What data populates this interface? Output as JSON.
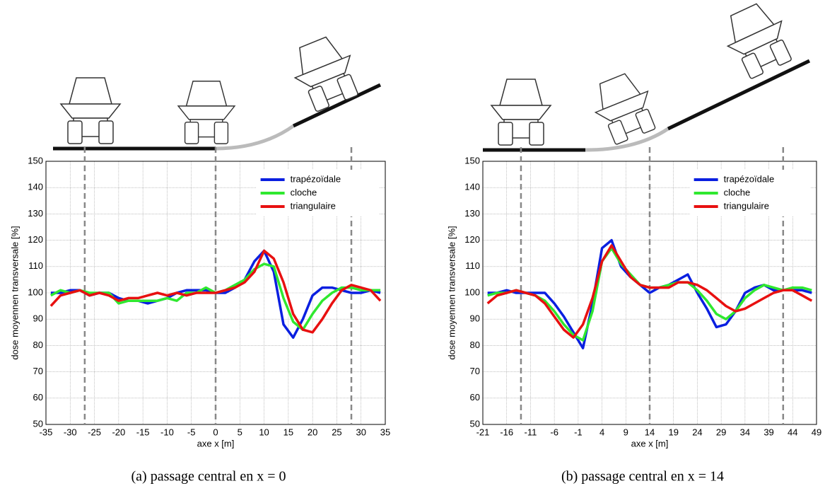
{
  "chart_data": [
    {
      "type": "line",
      "caption": "(a) passage central en x = 0",
      "xlabel": "axe x [m]",
      "ylabel": "dose moyennen transversale [%]",
      "xlim": [
        -35,
        35
      ],
      "xticks": [
        -35,
        -30,
        -25,
        -20,
        -15,
        -10,
        -5,
        0,
        5,
        10,
        15,
        20,
        25,
        30,
        35
      ],
      "ylim": [
        50,
        150
      ],
      "yticks": [
        50,
        60,
        70,
        80,
        90,
        100,
        110,
        120,
        130,
        140,
        150
      ],
      "grid": true,
      "legend": "upper right",
      "markers": [
        -27,
        0,
        28
      ],
      "x": [
        -34,
        -32,
        -30,
        -28,
        -26,
        -24,
        -22,
        -20,
        -18,
        -16,
        -14,
        -12,
        -10,
        -8,
        -6,
        -4,
        -2,
        0,
        2,
        4,
        6,
        8,
        10,
        12,
        14,
        16,
        18,
        20,
        22,
        24,
        26,
        28,
        30,
        32,
        34
      ],
      "series": [
        {
          "name": "trapézoïdale",
          "color": "#0a1fe0",
          "values": [
            100,
            100,
            101,
            101,
            99,
            100,
            100,
            98,
            97,
            97,
            96,
            97,
            98,
            100,
            101,
            101,
            101,
            100,
            100,
            102,
            105,
            112,
            116,
            108,
            88,
            83,
            90,
            99,
            102,
            102,
            101,
            100,
            100,
            101,
            100
          ]
        },
        {
          "name": "cloche",
          "color": "#2fe82f",
          "values": [
            99,
            101,
            100,
            101,
            100,
            100,
            100,
            96,
            97,
            97,
            97,
            97,
            98,
            97,
            100,
            100,
            102,
            100,
            101,
            103,
            105,
            109,
            111,
            110,
            98,
            89,
            86,
            92,
            97,
            100,
            102,
            102,
            101,
            101,
            101
          ]
        },
        {
          "name": "triangulaire",
          "color": "#e81010",
          "values": [
            95,
            99,
            100,
            101,
            99,
            100,
            99,
            97,
            98,
            98,
            99,
            100,
            99,
            100,
            99,
            100,
            100,
            100,
            101,
            102,
            104,
            108,
            116,
            113,
            104,
            92,
            86,
            85,
            90,
            96,
            101,
            103,
            102,
            101,
            97
          ]
        }
      ]
    },
    {
      "type": "line",
      "caption": "(b) passage central en x = 14",
      "xlabel": "axe x [m]",
      "ylabel": "dose moyennen transversale [%]",
      "xlim": [
        -21,
        49
      ],
      "xticks": [
        -21,
        -16,
        -11,
        -6,
        -1,
        4,
        9,
        14,
        19,
        24,
        29,
        34,
        39,
        44,
        49
      ],
      "ylim": [
        50,
        150
      ],
      "yticks": [
        50,
        60,
        70,
        80,
        90,
        100,
        110,
        120,
        130,
        140,
        150
      ],
      "grid": true,
      "legend": "upper right",
      "markers": [
        -13,
        14,
        42
      ],
      "x": [
        -20,
        -18,
        -16,
        -14,
        -12,
        -10,
        -8,
        -6,
        -4,
        -2,
        0,
        2,
        4,
        6,
        8,
        10,
        12,
        14,
        16,
        18,
        20,
        22,
        24,
        26,
        28,
        30,
        32,
        34,
        36,
        38,
        40,
        42,
        44,
        46,
        48
      ],
      "series": [
        {
          "name": "trapézoïdale",
          "color": "#0a1fe0",
          "values": [
            100,
            100,
            101,
            100,
            100,
            100,
            100,
            96,
            91,
            85,
            79,
            96,
            117,
            120,
            110,
            106,
            103,
            100,
            102,
            103,
            105,
            107,
            100,
            94,
            87,
            88,
            93,
            100,
            102,
            103,
            101,
            101,
            101,
            101,
            100
          ]
        },
        {
          "name": "cloche",
          "color": "#2fe82f",
          "values": [
            99,
            100,
            100,
            101,
            100,
            99,
            97,
            93,
            88,
            84,
            82,
            93,
            112,
            117,
            111,
            107,
            103,
            102,
            102,
            103,
            104,
            104,
            101,
            97,
            92,
            90,
            93,
            98,
            101,
            103,
            102,
            101,
            102,
            102,
            101
          ]
        },
        {
          "name": "triangulaire",
          "color": "#e81010",
          "values": [
            96,
            99,
            100,
            101,
            100,
            99,
            96,
            91,
            86,
            83,
            88,
            98,
            112,
            118,
            112,
            106,
            103,
            102,
            102,
            102,
            104,
            104,
            103,
            101,
            98,
            95,
            93,
            94,
            96,
            98,
            100,
            101,
            101,
            99,
            97
          ]
        }
      ]
    }
  ]
}
